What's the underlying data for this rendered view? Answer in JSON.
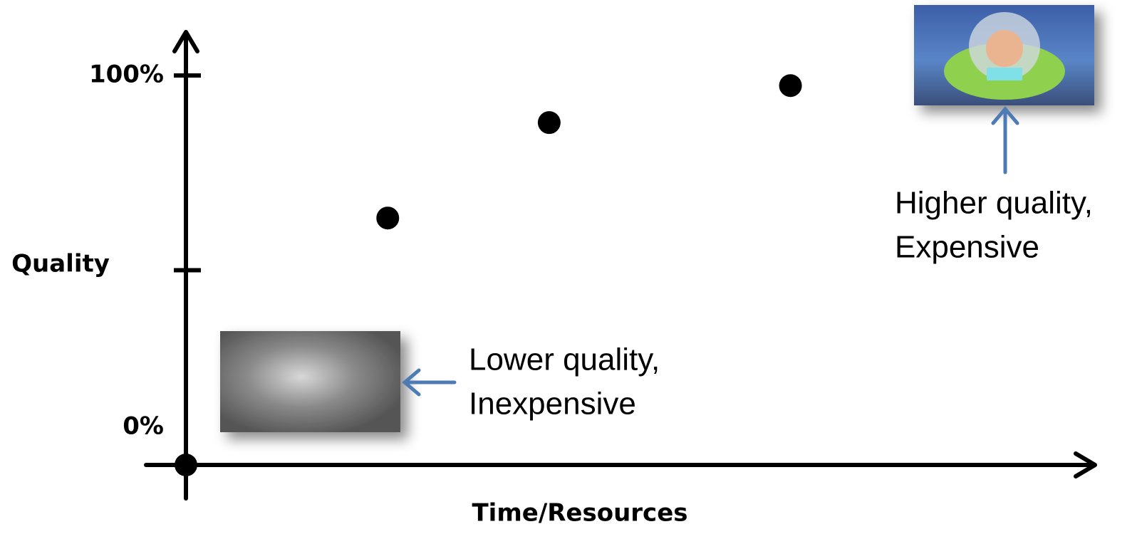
{
  "chart_data": {
    "type": "scatter",
    "y_label": "Quality",
    "x_label": "Time/Resources",
    "x": [
      22.5,
      40.5,
      67.4
    ],
    "values": [
      63.4,
      87.9,
      97.4
    ],
    "color": "#000000",
    "xlim": [
      0,
      100
    ],
    "ylim": [
      0,
      100
    ],
    "yticks": [
      {
        "value": 0,
        "label": "0%"
      },
      {
        "value": 50,
        "label": null
      },
      {
        "value": 100,
        "label": "100%"
      }
    ],
    "annotations": [
      {
        "lines": [
          "Lower quality,",
          "Inexpensive"
        ]
      },
      {
        "lines": [
          "Higher quality,",
          "Expensive"
        ]
      }
    ]
  }
}
